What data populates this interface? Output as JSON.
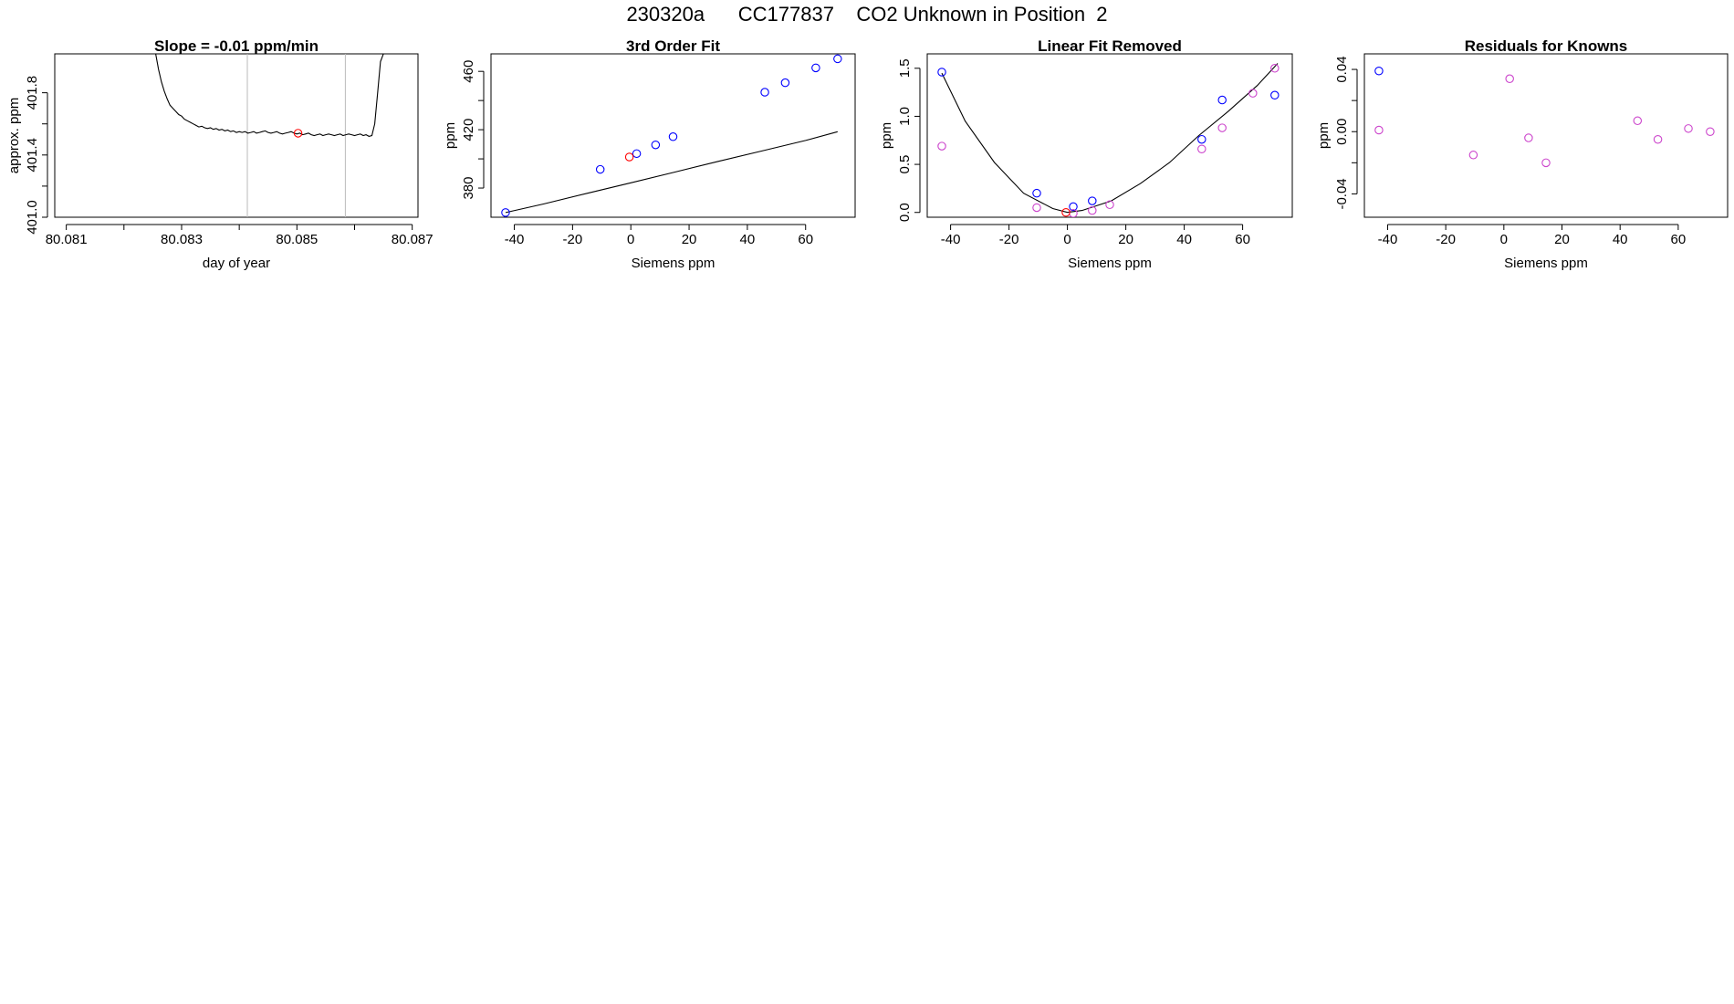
{
  "page_title": "230320a      CC177837    CO2 Unknown in Position  2",
  "colors": {
    "known": "#0000ff",
    "unknown": "#ff0000",
    "residual": "#cc44cc",
    "line": "#000000",
    "vline": "#bbbbbb"
  },
  "chart_data": [
    {
      "type": "line",
      "title": "Slope =  -0.01  ppm/min",
      "xlabel": "day of year",
      "ylabel": "approx. ppm",
      "xlim": [
        80.0808,
        80.0871
      ],
      "ylim": [
        401.0,
        402.05
      ],
      "xticks": [
        80.081,
        80.082,
        80.083,
        80.084,
        80.085,
        80.086,
        80.087
      ],
      "xtick_labels": [
        "80.081",
        "",
        "80.083",
        "",
        "80.085",
        "",
        "80.087"
      ],
      "yticks": [
        401.0,
        401.2,
        401.4,
        401.6,
        401.8
      ],
      "ytick_labels": [
        "401.0",
        "",
        "401.4",
        "",
        "401.8"
      ],
      "vlines": [
        80.08414,
        80.08584
      ],
      "series": [
        {
          "kind": "line",
          "x": [
            80.08255,
            80.0826,
            80.08265,
            80.0827,
            80.08275,
            80.0828,
            80.08285,
            80.0829,
            80.08295,
            80.083,
            80.08305,
            80.0831,
            80.08315,
            80.0832,
            80.08325,
            80.0833,
            80.08335,
            80.0834,
            80.08345,
            80.0835,
            80.08355,
            80.0836,
            80.08365,
            80.0837,
            80.08375,
            80.0838,
            80.08385,
            80.0839,
            80.08395,
            80.084,
            80.08405,
            80.0841,
            80.08415,
            80.0842,
            80.08425,
            80.0843,
            80.08435,
            80.0844,
            80.08445,
            80.0845,
            80.08455,
            80.0846,
            80.08465,
            80.0847,
            80.08475,
            80.0848,
            80.08485,
            80.0849,
            80.08495,
            80.085,
            80.08505,
            80.0851,
            80.08515,
            80.0852,
            80.08525,
            80.0853,
            80.08535,
            80.0854,
            80.08545,
            80.0855,
            80.08555,
            80.0856,
            80.08565,
            80.0857,
            80.08575,
            80.0858,
            80.08585,
            80.0859,
            80.08595,
            80.086,
            80.08605,
            80.0861,
            80.08615,
            80.0862,
            80.08625,
            80.0863,
            80.08635,
            80.0864,
            80.08645,
            80.0865
          ],
          "y": [
            402.05,
            401.95,
            401.87,
            401.81,
            401.76,
            401.72,
            401.7,
            401.68,
            401.66,
            401.65,
            401.63,
            401.62,
            401.61,
            401.6,
            401.59,
            401.58,
            401.585,
            401.575,
            401.57,
            401.575,
            401.565,
            401.57,
            401.56,
            401.565,
            401.555,
            401.56,
            401.55,
            401.555,
            401.545,
            401.55,
            401.545,
            401.55,
            401.54,
            401.545,
            401.55,
            401.54,
            401.545,
            401.55,
            401.555,
            401.545,
            401.54,
            401.545,
            401.55,
            401.54,
            401.535,
            401.54,
            401.545,
            401.55,
            401.54,
            401.535,
            401.54,
            401.53,
            401.535,
            401.54,
            401.53,
            401.525,
            401.53,
            401.535,
            401.525,
            401.53,
            401.535,
            401.53,
            401.525,
            401.53,
            401.535,
            401.525,
            401.53,
            401.535,
            401.53,
            401.525,
            401.53,
            401.535,
            401.525,
            401.53,
            401.52,
            401.525,
            401.6,
            401.8,
            402.0,
            402.05
          ]
        },
        {
          "kind": "point",
          "color": "unknown",
          "x": [
            80.08502
          ],
          "y": [
            401.54
          ]
        }
      ]
    },
    {
      "type": "scatter",
      "title": "3rd Order Fit",
      "xlabel": "Siemens ppm",
      "ylabel": "ppm",
      "xlim": [
        -48,
        77
      ],
      "ylim": [
        360,
        472
      ],
      "xticks": [
        -40,
        -20,
        0,
        20,
        40,
        60
      ],
      "xtick_labels": [
        "-40",
        "-20",
        "0",
        "20",
        "40",
        "60"
      ],
      "yticks": [
        380,
        400,
        420,
        440,
        460
      ],
      "ytick_labels": [
        "380",
        "",
        "420",
        "",
        "460"
      ],
      "series": [
        {
          "kind": "line",
          "x": [
            -43,
            -30,
            -15,
            0,
            15,
            30,
            45,
            60,
            71
          ],
          "y": [
            363.2,
            369.1,
            376.4,
            383.6,
            390.9,
            398.3,
            405.4,
            412.6,
            418.6
          ]
        },
        {
          "kind": "points",
          "color": "known",
          "x": [
            -43,
            -10.5,
            2,
            8.5,
            14.5,
            46,
            53,
            63.5,
            71
          ],
          "y": [
            363.2,
            392.8,
            403.6,
            409.6,
            415.2,
            445.7,
            452.2,
            462.4,
            468.6
          ]
        },
        {
          "kind": "points",
          "color": "unknown",
          "x": [
            -0.5
          ],
          "y": [
            401.3
          ]
        }
      ]
    },
    {
      "type": "scatter",
      "title": "Linear Fit Removed",
      "xlabel": "Siemens ppm",
      "ylabel": "ppm",
      "xlim": [
        -48,
        77
      ],
      "ylim": [
        -0.05,
        1.65
      ],
      "xticks": [
        -40,
        -20,
        0,
        20,
        40,
        60
      ],
      "xtick_labels": [
        "-40",
        "-20",
        "0",
        "20",
        "40",
        "60"
      ],
      "yticks": [
        0.0,
        0.5,
        1.0,
        1.5
      ],
      "ytick_labels": [
        "0.0",
        "0.5",
        "1.0",
        "1.5"
      ],
      "series": [
        {
          "kind": "line",
          "x": [
            -43,
            -35,
            -25,
            -15,
            -5,
            0,
            5,
            15,
            25,
            35,
            45,
            55,
            65,
            72
          ],
          "y": [
            1.45,
            0.95,
            0.52,
            0.2,
            0.04,
            0.0,
            0.02,
            0.12,
            0.3,
            0.52,
            0.8,
            1.05,
            1.32,
            1.55
          ]
        },
        {
          "kind": "points",
          "color": "known",
          "x": [
            -43,
            -10.5,
            2,
            8.5,
            46,
            53,
            71
          ],
          "y": [
            1.46,
            0.2,
            0.06,
            0.12,
            0.76,
            1.17,
            1.22
          ]
        },
        {
          "kind": "points",
          "color": "residual",
          "x": [
            -43,
            -10.5,
            2,
            8.5,
            14.5,
            46,
            53,
            63.5,
            71
          ],
          "y": [
            0.69,
            0.05,
            -0.01,
            0.02,
            0.08,
            0.66,
            0.88,
            1.24,
            1.5
          ]
        },
        {
          "kind": "points",
          "color": "unknown",
          "x": [
            -0.5
          ],
          "y": [
            0.0
          ]
        }
      ]
    },
    {
      "type": "scatter",
      "title": "Residuals for Knowns",
      "xlabel": "Siemens ppm",
      "ylabel": "ppm",
      "xlim": [
        -48,
        77
      ],
      "ylim": [
        -0.055,
        0.05
      ],
      "xticks": [
        -40,
        -20,
        0,
        20,
        40,
        60
      ],
      "xtick_labels": [
        "-40",
        "-20",
        "0",
        "20",
        "40",
        "60"
      ],
      "yticks": [
        -0.04,
        -0.02,
        0.0,
        0.02,
        0.04
      ],
      "ytick_labels": [
        "-0.04",
        "",
        "0.00",
        "",
        "0.04"
      ],
      "series": [
        {
          "kind": "points",
          "color": "known",
          "x": [
            -43
          ],
          "y": [
            0.039
          ]
        },
        {
          "kind": "points",
          "color": "residual",
          "x": [
            -43,
            -10.5,
            2,
            8.5,
            14.5,
            46,
            53,
            63.5,
            71
          ],
          "y": [
            0.001,
            -0.015,
            0.034,
            -0.004,
            -0.02,
            0.007,
            -0.005,
            0.002,
            0.0
          ]
        }
      ]
    }
  ]
}
